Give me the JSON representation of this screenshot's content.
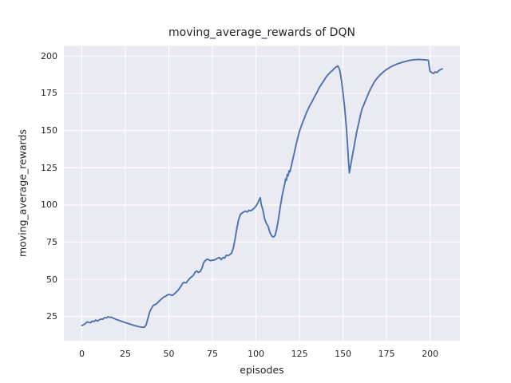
{
  "chart_data": {
    "type": "line",
    "title": "moving_average_rewards of DQN",
    "xlabel": "episodes",
    "ylabel": "moving_average_rewards",
    "x_ticks": [
      0,
      25,
      50,
      75,
      100,
      125,
      150,
      175,
      200
    ],
    "y_ticks": [
      25,
      50,
      75,
      100,
      125,
      150,
      175,
      200
    ],
    "xlim": [
      -10.3,
      217.1
    ],
    "ylim": [
      8.7,
      206.9
    ],
    "grid": true,
    "legend_position": "none",
    "colors": {
      "figure_bg": "#ffffff",
      "axes_bg": "#eaeaf2",
      "grid": "#ffffff",
      "line": "#4c72b0",
      "text": "#262626"
    },
    "series": [
      {
        "name": "moving_average_rewards",
        "points": [
          [
            0,
            19
          ],
          [
            1,
            19.4
          ],
          [
            2,
            20.2
          ],
          [
            3,
            21.3
          ],
          [
            4,
            21
          ],
          [
            5,
            20.8
          ],
          [
            6,
            21.9
          ],
          [
            7,
            21.6
          ],
          [
            8,
            22.6
          ],
          [
            9,
            21.9
          ],
          [
            10,
            22.7
          ],
          [
            11,
            23.3
          ],
          [
            12,
            23.1
          ],
          [
            13,
            24.2
          ],
          [
            14,
            24
          ],
          [
            15,
            24.8
          ],
          [
            16,
            24.4
          ],
          [
            17,
            24.6
          ],
          [
            18,
            23.9
          ],
          [
            19,
            23.4
          ],
          [
            20,
            22.9
          ],
          [
            21,
            22.5
          ],
          [
            22,
            22.1
          ],
          [
            23,
            21.7
          ],
          [
            24,
            21.3
          ],
          [
            25,
            20.9
          ],
          [
            26,
            20.5
          ],
          [
            27,
            20.1
          ],
          [
            28,
            19.7
          ],
          [
            29,
            19.4
          ],
          [
            30,
            19
          ],
          [
            31,
            18.7
          ],
          [
            32,
            18.4
          ],
          [
            33,
            18.1
          ],
          [
            34,
            17.8
          ],
          [
            35,
            17.7
          ],
          [
            36,
            17.8
          ],
          [
            37,
            19.5
          ],
          [
            38,
            24
          ],
          [
            39,
            28
          ],
          [
            40,
            30.5
          ],
          [
            41,
            32.3
          ],
          [
            42,
            33
          ],
          [
            43,
            33.6
          ],
          [
            44,
            34.8
          ],
          [
            45,
            36
          ],
          [
            46,
            37
          ],
          [
            47,
            38
          ],
          [
            48,
            38.5
          ],
          [
            49,
            39.3
          ],
          [
            50,
            39.8
          ],
          [
            51,
            39.5
          ],
          [
            52,
            39.2
          ],
          [
            53,
            40
          ],
          [
            54,
            41.1
          ],
          [
            55,
            42.3
          ],
          [
            56,
            43.7
          ],
          [
            57,
            45.5
          ],
          [
            58,
            47.5
          ],
          [
            59,
            47.8
          ],
          [
            60,
            47.6
          ],
          [
            61,
            49.2
          ],
          [
            62,
            50.6
          ],
          [
            63,
            51.6
          ],
          [
            64,
            52.6
          ],
          [
            65,
            54.6
          ],
          [
            66,
            55.6
          ],
          [
            67,
            54.6
          ],
          [
            68,
            55.2
          ],
          [
            69,
            57.6
          ],
          [
            70,
            61.2
          ],
          [
            71,
            62.6
          ],
          [
            72,
            63.6
          ],
          [
            73,
            63
          ],
          [
            74,
            62.5
          ],
          [
            75,
            62.8
          ],
          [
            76,
            63
          ],
          [
            77,
            63.4
          ],
          [
            78,
            64.2
          ],
          [
            79,
            64.6
          ],
          [
            80,
            63.2
          ],
          [
            81,
            64.6
          ],
          [
            82,
            64.2
          ],
          [
            83,
            66.2
          ],
          [
            84,
            65.8
          ],
          [
            85,
            66.6
          ],
          [
            86,
            67.6
          ],
          [
            87,
            71
          ],
          [
            88,
            77
          ],
          [
            89,
            84
          ],
          [
            90,
            90
          ],
          [
            91,
            93.5
          ],
          [
            92,
            94.5
          ],
          [
            93,
            95.2
          ],
          [
            94,
            95.8
          ],
          [
            95,
            95.2
          ],
          [
            96,
            96.4
          ],
          [
            97,
            96
          ],
          [
            98,
            96.8
          ],
          [
            99,
            97.8
          ],
          [
            100,
            99.2
          ],
          [
            101,
            101.2
          ],
          [
            102,
            103.8
          ],
          [
            102.5,
            104.8
          ],
          [
            103,
            100.5
          ],
          [
            104,
            96.5
          ],
          [
            105,
            90.5
          ],
          [
            106,
            87.5
          ],
          [
            107,
            85.5
          ],
          [
            108,
            81.5
          ],
          [
            109,
            79.2
          ],
          [
            110,
            78.3
          ],
          [
            111,
            79.5
          ],
          [
            112,
            84.5
          ],
          [
            113,
            91
          ],
          [
            114,
            99
          ],
          [
            115,
            106
          ],
          [
            116,
            111.5
          ],
          [
            116.5,
            114
          ],
          [
            117,
            117.5
          ],
          [
            117.5,
            116.5
          ],
          [
            118,
            120.5
          ],
          [
            118.5,
            119.5
          ],
          [
            119,
            123
          ],
          [
            119.5,
            122.2
          ],
          [
            120,
            124.5
          ],
          [
            121,
            130
          ],
          [
            122,
            135
          ],
          [
            123,
            140.5
          ],
          [
            124,
            145
          ],
          [
            125,
            149.5
          ],
          [
            126,
            153
          ],
          [
            127,
            156
          ],
          [
            128,
            159
          ],
          [
            129,
            162
          ],
          [
            130,
            164.5
          ],
          [
            131,
            167
          ],
          [
            132,
            169
          ],
          [
            133,
            171.3
          ],
          [
            134,
            173.5
          ],
          [
            135,
            175.5
          ],
          [
            136,
            178
          ],
          [
            137,
            180
          ],
          [
            138,
            181.8
          ],
          [
            139,
            183.5
          ],
          [
            140,
            185.5
          ],
          [
            141,
            187
          ],
          [
            142,
            188.3
          ],
          [
            143,
            189.5
          ],
          [
            144,
            190.5
          ],
          [
            145,
            191.8
          ],
          [
            146,
            192.7
          ],
          [
            147,
            193.4
          ],
          [
            148,
            191
          ],
          [
            149,
            184.5
          ],
          [
            150,
            175.5
          ],
          [
            151,
            164.5
          ],
          [
            152,
            151
          ],
          [
            153,
            132
          ],
          [
            153.6,
            121.5
          ],
          [
            154,
            124
          ],
          [
            155,
            130.5
          ],
          [
            156,
            137
          ],
          [
            157,
            143.5
          ],
          [
            158,
            150
          ],
          [
            159,
            155
          ],
          [
            160,
            160.5
          ],
          [
            161,
            164.8
          ],
          [
            162,
            167.5
          ],
          [
            163,
            170.5
          ],
          [
            164,
            173.3
          ],
          [
            165,
            176
          ],
          [
            166,
            178.3
          ],
          [
            167,
            180.5
          ],
          [
            168,
            182.7
          ],
          [
            169,
            184.3
          ],
          [
            170,
            185.8
          ],
          [
            171,
            187
          ],
          [
            172,
            188.2
          ],
          [
            173,
            189.2
          ],
          [
            174,
            190.2
          ],
          [
            175,
            191
          ],
          [
            176,
            191.8
          ],
          [
            177,
            192.5
          ],
          [
            178,
            193.1
          ],
          [
            179,
            193.7
          ],
          [
            180,
            194.2
          ],
          [
            181,
            194.7
          ],
          [
            182,
            195.1
          ],
          [
            183,
            195.5
          ],
          [
            184,
            195.9
          ],
          [
            185,
            196.2
          ],
          [
            186,
            196.5
          ],
          [
            187,
            196.8
          ],
          [
            188,
            197.1
          ],
          [
            189,
            197.3
          ],
          [
            190,
            197.5
          ],
          [
            191,
            197.6
          ],
          [
            192,
            197.7
          ],
          [
            193,
            197.8
          ],
          [
            194,
            197.8
          ],
          [
            195,
            197.7
          ],
          [
            196,
            197.6
          ],
          [
            197,
            197.5
          ],
          [
            198,
            197.4
          ],
          [
            199,
            197.3
          ],
          [
            199.5,
            193
          ],
          [
            200,
            189.8
          ],
          [
            201,
            188.8
          ],
          [
            202,
            188.4
          ],
          [
            203,
            189.4
          ],
          [
            204,
            189
          ],
          [
            205,
            190.2
          ],
          [
            206,
            191
          ],
          [
            207,
            191.4
          ]
        ]
      }
    ]
  }
}
